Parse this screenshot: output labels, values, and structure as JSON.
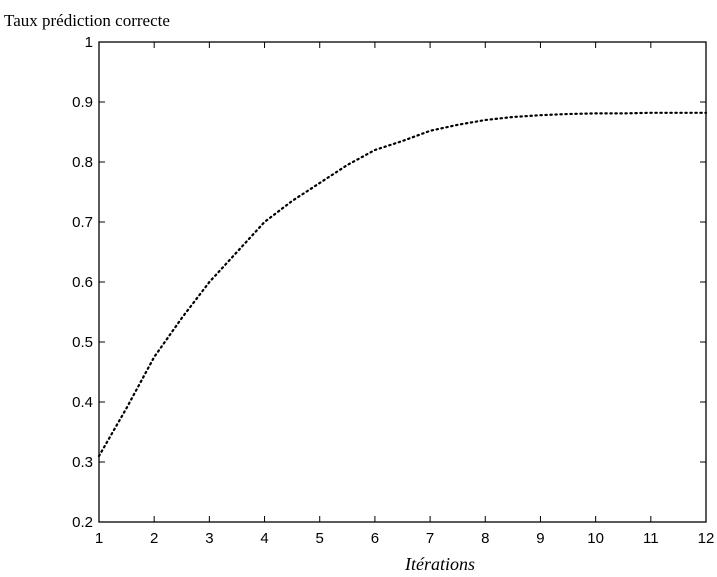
{
  "chart_data": {
    "type": "line",
    "ylabel": "Taux prédiction correcte",
    "xlabel": "Itérations",
    "xlim": [
      1,
      12
    ],
    "ylim": [
      0.2,
      1
    ],
    "x_ticks": [
      "1",
      "2",
      "3",
      "4",
      "5",
      "6",
      "7",
      "8",
      "9",
      "10",
      "11",
      "12"
    ],
    "y_ticks": [
      "0.2",
      "0.3",
      "0.4",
      "0.5",
      "0.6",
      "0.7",
      "0.8",
      "0.9",
      "1"
    ],
    "grid": false,
    "line_style": "dotted",
    "line_color": "#000000",
    "x": [
      1,
      1.5,
      2,
      2.5,
      3,
      3.5,
      4,
      4.5,
      5,
      5.5,
      6,
      6.5,
      7,
      7.5,
      8,
      8.5,
      9,
      9.5,
      10,
      10.5,
      11,
      11.5,
      12
    ],
    "y": [
      0.31,
      0.39,
      0.475,
      0.54,
      0.6,
      0.65,
      0.7,
      0.735,
      0.765,
      0.795,
      0.82,
      0.835,
      0.852,
      0.862,
      0.87,
      0.875,
      0.878,
      0.88,
      0.881,
      0.881,
      0.882,
      0.882,
      0.882
    ]
  }
}
